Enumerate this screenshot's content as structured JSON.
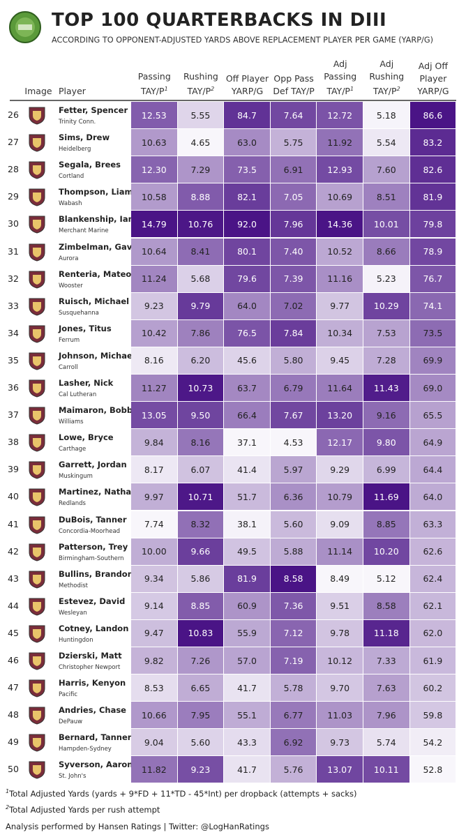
{
  "header": {
    "title": "TOP 100 QUARTERBACKS IN DIII",
    "subtitle": "ACCORDING TO OPPONENT-ADJUSTED YARDS ABOVE REPLACEMENT PLAYER PER GAME (YARP/G)"
  },
  "table": {
    "image_header": "Image",
    "player_header": "Player",
    "columns": [
      {
        "lines": [
          "Passing",
          "TAY/P"
        ],
        "note": "1"
      },
      {
        "lines": [
          "Rushing",
          "TAY/P"
        ],
        "note": "2"
      },
      {
        "lines": [
          "Off Player",
          "YARP/G"
        ]
      },
      {
        "lines": [
          "Opp Pass",
          "Def TAY/P"
        ]
      },
      {
        "lines": [
          "Adj",
          "Passing",
          "TAY/P"
        ],
        "note": "1"
      },
      {
        "lines": [
          "Adj",
          "Rushing",
          "TAY/P"
        ],
        "note": "2"
      },
      {
        "lines": [
          "Adj Off",
          "Player",
          "YARP/G"
        ]
      }
    ],
    "rows": [
      {
        "rank": "26",
        "name": "Fetter, Spencer",
        "school": "Trinity Conn.",
        "values": [
          "12.53",
          "5.55",
          "84.7",
          "7.64",
          "12.72",
          "5.18",
          "86.6"
        ]
      },
      {
        "rank": "27",
        "name": "Sims, Drew",
        "school": "Heidelberg",
        "values": [
          "10.63",
          "4.65",
          "63.0",
          "5.75",
          "11.92",
          "5.54",
          "83.2"
        ]
      },
      {
        "rank": "28",
        "name": "Segala, Brees",
        "school": "Cortland",
        "values": [
          "12.30",
          "7.29",
          "73.5",
          "6.91",
          "12.93",
          "7.60",
          "82.6"
        ]
      },
      {
        "rank": "29",
        "name": "Thompson, Liam",
        "school": "Wabash",
        "values": [
          "10.58",
          "8.88",
          "82.1",
          "7.05",
          "10.69",
          "8.51",
          "81.9"
        ]
      },
      {
        "rank": "30",
        "name": "Blankenship, Ian",
        "school": "Merchant Marine",
        "values": [
          "14.79",
          "10.76",
          "92.0",
          "7.96",
          "14.36",
          "10.01",
          "79.8"
        ]
      },
      {
        "rank": "31",
        "name": "Zimbelman, Gavin",
        "school": "Aurora",
        "values": [
          "10.64",
          "8.41",
          "80.1",
          "7.40",
          "10.52",
          "8.66",
          "78.9"
        ]
      },
      {
        "rank": "32",
        "name": "Renteria, Mateo",
        "school": "Wooster",
        "values": [
          "11.24",
          "5.68",
          "79.6",
          "7.39",
          "11.16",
          "5.23",
          "76.7"
        ]
      },
      {
        "rank": "33",
        "name": "Ruisch, Michael",
        "school": "Susquehanna",
        "values": [
          "9.23",
          "9.79",
          "64.0",
          "7.02",
          "9.77",
          "10.29",
          "74.1"
        ]
      },
      {
        "rank": "34",
        "name": "Jones, Titus",
        "school": "Ferrum",
        "values": [
          "10.42",
          "7.86",
          "76.5",
          "7.84",
          "10.34",
          "7.53",
          "73.5"
        ]
      },
      {
        "rank": "35",
        "name": "Johnson, Michael",
        "school": "Carroll",
        "values": [
          "8.16",
          "6.20",
          "45.6",
          "5.80",
          "9.45",
          "7.28",
          "69.9"
        ]
      },
      {
        "rank": "36",
        "name": "Lasher, Nick",
        "school": "Cal Lutheran",
        "values": [
          "11.27",
          "10.73",
          "63.7",
          "6.79",
          "11.64",
          "11.43",
          "69.0"
        ]
      },
      {
        "rank": "37",
        "name": "Maimaron, Bobby",
        "school": "Williams",
        "values": [
          "13.05",
          "9.50",
          "66.4",
          "7.67",
          "13.20",
          "9.16",
          "65.5"
        ]
      },
      {
        "rank": "38",
        "name": "Lowe, Bryce",
        "school": "Carthage",
        "values": [
          "9.84",
          "8.16",
          "37.1",
          "4.53",
          "12.17",
          "9.80",
          "64.9"
        ]
      },
      {
        "rank": "39",
        "name": "Garrett, Jordan",
        "school": "Muskingum",
        "values": [
          "8.17",
          "6.07",
          "41.4",
          "5.97",
          "9.29",
          "6.99",
          "64.4"
        ]
      },
      {
        "rank": "40",
        "name": "Martinez, Nathan",
        "school": "Redlands",
        "values": [
          "9.97",
          "10.71",
          "51.7",
          "6.36",
          "10.79",
          "11.69",
          "64.0"
        ]
      },
      {
        "rank": "41",
        "name": "DuBois, Tanner",
        "school": "Concordia-Moorhead",
        "values": [
          "7.74",
          "8.32",
          "38.1",
          "5.60",
          "9.09",
          "8.85",
          "63.3"
        ]
      },
      {
        "rank": "42",
        "name": "Patterson, Trey",
        "school": "Birmingham-Southern",
        "values": [
          "10.00",
          "9.66",
          "49.5",
          "5.88",
          "11.14",
          "10.20",
          "62.6"
        ]
      },
      {
        "rank": "43",
        "name": "Bullins, Brandon",
        "school": "Methodist",
        "values": [
          "9.34",
          "5.86",
          "81.9",
          "8.58",
          "8.49",
          "5.12",
          "62.4"
        ]
      },
      {
        "rank": "44",
        "name": "Estevez, David",
        "school": "Wesleyan",
        "values": [
          "9.14",
          "8.85",
          "60.9",
          "7.36",
          "9.51",
          "8.58",
          "62.1"
        ]
      },
      {
        "rank": "45",
        "name": "Cotney, Landon",
        "school": "Huntingdon",
        "values": [
          "9.47",
          "10.83",
          "55.9",
          "7.12",
          "9.78",
          "11.18",
          "62.0"
        ]
      },
      {
        "rank": "46",
        "name": "Dzierski, Matt",
        "school": "Christopher Newport",
        "values": [
          "9.82",
          "7.26",
          "57.0",
          "7.19",
          "10.12",
          "7.33",
          "61.9"
        ]
      },
      {
        "rank": "47",
        "name": "Harris, Kenyon",
        "school": "Pacific",
        "values": [
          "8.53",
          "6.65",
          "41.7",
          "5.78",
          "9.70",
          "7.63",
          "60.2"
        ]
      },
      {
        "rank": "48",
        "name": "Andries, Chase",
        "school": "DePauw",
        "values": [
          "10.66",
          "7.95",
          "55.1",
          "6.77",
          "11.03",
          "7.96",
          "59.8"
        ]
      },
      {
        "rank": "49",
        "name": "Bernard, Tanner",
        "school": "Hampden-Sydney",
        "values": [
          "9.04",
          "5.60",
          "43.3",
          "6.92",
          "9.73",
          "5.74",
          "54.2"
        ]
      },
      {
        "rank": "50",
        "name": "Syverson, Aaron",
        "school": "St. John's",
        "values": [
          "11.82",
          "9.23",
          "41.7",
          "5.76",
          "13.07",
          "10.11",
          "52.8"
        ]
      }
    ]
  },
  "footnotes": [
    {
      "mark": "1",
      "text": "Total Adjusted Yards (yards + 9*FD + 11*TD - 45*Int) per dropback (attempts + sacks)"
    },
    {
      "mark": "2",
      "text": "Total Adjusted Yards per rush attempt"
    }
  ],
  "credit": "Analysis performed by Hansen Ratings | Twitter: @LogHanRatings"
}
